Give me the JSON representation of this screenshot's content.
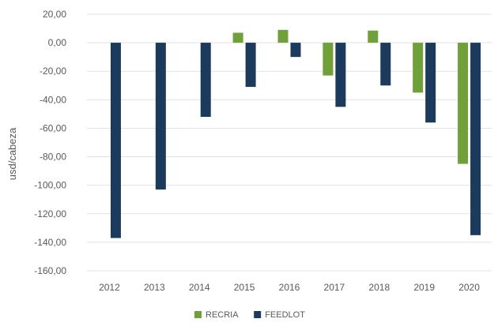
{
  "chart_data": {
    "type": "bar",
    "title": "",
    "xlabel": "",
    "ylabel": "usd/cabeza",
    "categories": [
      "2012",
      "2013",
      "2014",
      "2015",
      "2016",
      "2017",
      "2018",
      "2019",
      "2020"
    ],
    "series": [
      {
        "name": "RECRIA",
        "color": "#70A03A",
        "values": [
          null,
          null,
          null,
          7.0,
          9.0,
          -23.0,
          8.5,
          -35.0,
          -85.0
        ]
      },
      {
        "name": "FEEDLOT",
        "color": "#1B3A5C",
        "values": [
          -137.0,
          -103.0,
          -52.0,
          -31.0,
          -10.0,
          -45.0,
          -30.0,
          -56.0,
          -135.0
        ]
      }
    ],
    "ylim": [
      -160,
      20
    ],
    "yticks": [
      20,
      0,
      -20,
      -40,
      -60,
      -80,
      -100,
      -120,
      -140,
      -160
    ],
    "ytick_labels": [
      "20,00",
      "0,00",
      "-20,00",
      "-40,00",
      "-60,00",
      "-80,00",
      "-100,00",
      "-120,00",
      "-140,00",
      "-160,00"
    ],
    "grid": true,
    "legend_position": "bottom-center"
  }
}
